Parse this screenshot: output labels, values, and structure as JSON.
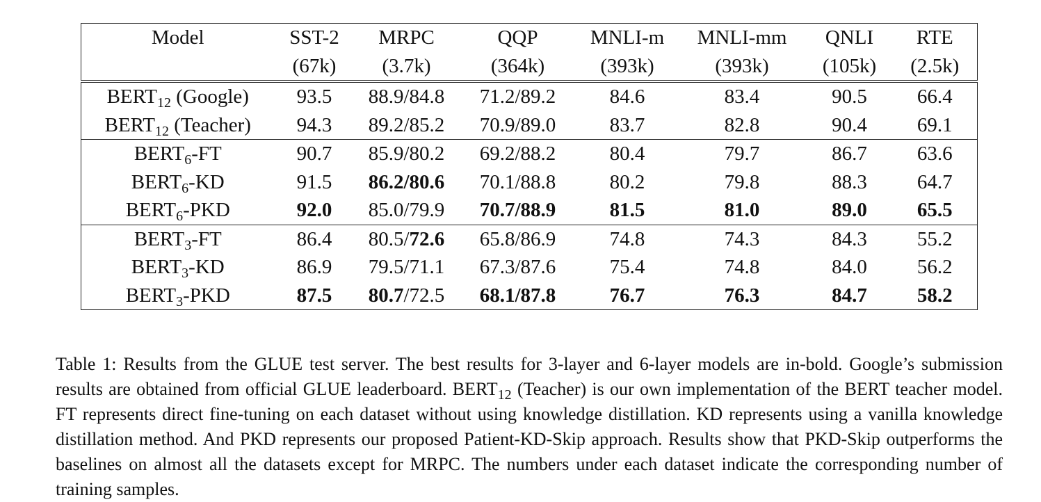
{
  "table": {
    "header": [
      {
        "name": "Model",
        "size": ""
      },
      {
        "name": "SST-2",
        "size": "(67k)"
      },
      {
        "name": "MRPC",
        "size": "(3.7k)"
      },
      {
        "name": "QQP",
        "size": "(364k)"
      },
      {
        "name": "MNLI-m",
        "size": "(393k)"
      },
      {
        "name": "MNLI-mm",
        "size": "(393k)"
      },
      {
        "name": "QNLI",
        "size": "(105k)"
      },
      {
        "name": "RTE",
        "size": "(2.5k)"
      }
    ],
    "groups": [
      {
        "rows": [
          {
            "model_base": "BERT",
            "model_sub": "12",
            "model_suffix": " (Google)",
            "cells": [
              {
                "v": "93.5"
              },
              {
                "v": "88.9/84.8"
              },
              {
                "v": "71.2/89.2"
              },
              {
                "v": "84.6"
              },
              {
                "v": "83.4"
              },
              {
                "v": "90.5"
              },
              {
                "v": "66.4"
              }
            ]
          },
          {
            "model_base": "BERT",
            "model_sub": "12",
            "model_suffix": " (Teacher)",
            "cells": [
              {
                "v": "94.3"
              },
              {
                "v": "89.2/85.2"
              },
              {
                "v": "70.9/89.0"
              },
              {
                "v": "83.7"
              },
              {
                "v": "82.8"
              },
              {
                "v": "90.4"
              },
              {
                "v": "69.1"
              }
            ]
          }
        ]
      },
      {
        "rows": [
          {
            "model_base": "BERT",
            "model_sub": "6",
            "model_suffix": "-FT",
            "cells": [
              {
                "v": "90.7"
              },
              {
                "v": "85.9/80.2"
              },
              {
                "v": "69.2/88.2"
              },
              {
                "v": "80.4"
              },
              {
                "v": "79.7"
              },
              {
                "v": "86.7"
              },
              {
                "v": "63.6"
              }
            ]
          },
          {
            "model_base": "BERT",
            "model_sub": "6",
            "model_suffix": "-KD",
            "cells": [
              {
                "v": "91.5"
              },
              {
                "v": "86.2/80.6",
                "b": true
              },
              {
                "v": "70.1/88.8"
              },
              {
                "v": "80.2"
              },
              {
                "v": "79.8"
              },
              {
                "v": "88.3"
              },
              {
                "v": "64.7"
              }
            ]
          },
          {
            "model_base": "BERT",
            "model_sub": "6",
            "model_suffix": "-PKD",
            "cells": [
              {
                "v": "92.0",
                "b": true
              },
              {
                "v": "85.0/79.9"
              },
              {
                "v": "70.7/88.9",
                "b": true
              },
              {
                "v": "81.5",
                "b": true
              },
              {
                "v": "81.0",
                "b": true
              },
              {
                "v": "89.0",
                "b": true
              },
              {
                "v": "65.5",
                "b": true
              }
            ]
          }
        ]
      },
      {
        "rows": [
          {
            "model_base": "BERT",
            "model_sub": "3",
            "model_suffix": "-FT",
            "cells": [
              {
                "v": "86.4"
              },
              {
                "parts": [
                  {
                    "t": "80.5/"
                  },
                  {
                    "t": "72.6",
                    "b": true
                  }
                ]
              },
              {
                "v": "65.8/86.9"
              },
              {
                "v": "74.8"
              },
              {
                "v": "74.3"
              },
              {
                "v": "84.3"
              },
              {
                "v": "55.2"
              }
            ]
          },
          {
            "model_base": "BERT",
            "model_sub": "3",
            "model_suffix": "-KD",
            "cells": [
              {
                "v": "86.9"
              },
              {
                "v": "79.5/71.1"
              },
              {
                "v": "67.3/87.6"
              },
              {
                "v": "75.4"
              },
              {
                "v": "74.8"
              },
              {
                "v": "84.0"
              },
              {
                "v": "56.2"
              }
            ]
          },
          {
            "model_base": "BERT",
            "model_sub": "3",
            "model_suffix": "-PKD",
            "cells": [
              {
                "v": "87.5",
                "b": true
              },
              {
                "parts": [
                  {
                    "t": "80.7",
                    "b": true
                  },
                  {
                    "t": "/72.5"
                  }
                ]
              },
              {
                "v": "68.1/87.8",
                "b": true
              },
              {
                "v": "76.7",
                "b": true
              },
              {
                "v": "76.3",
                "b": true
              },
              {
                "v": "84.7",
                "b": true
              },
              {
                "v": "58.2",
                "b": true
              }
            ]
          }
        ]
      }
    ]
  },
  "caption": {
    "before_sub": "Table 1: Results from the GLUE test server. The best results for 3-layer and 6-layer models are in-bold. Google’s submission results are obtained from official GLUE leaderboard. BERT",
    "sub": "12",
    "after_sub": " (Teacher) is our own implementation of the BERT teacher model. FT represents direct fine-tuning on each dataset without using knowledge distillation. KD represents using a vanilla knowledge distillation method. And PKD represents our proposed Patient-KD-Skip approach. Results show that PKD-Skip outperforms the baselines on almost all the datasets except for MRPC. The numbers under each dataset indicate the corresponding number of training samples."
  }
}
